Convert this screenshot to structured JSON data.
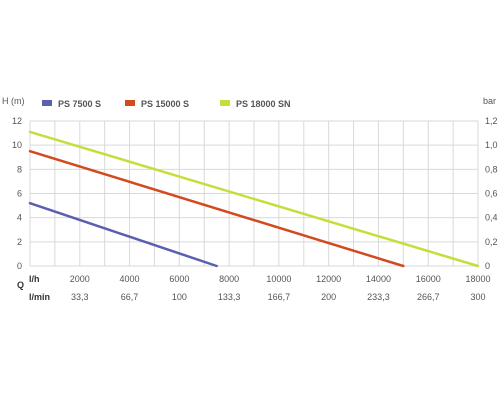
{
  "chart_data": {
    "type": "line",
    "left_axis_label": "H (m)",
    "right_axis_label": "bar",
    "q_label": "Q",
    "lh_label": "l/h",
    "lmin_label": "l/min",
    "y_left_ticks": [
      "0",
      "2",
      "4",
      "6",
      "8",
      "10",
      "12"
    ],
    "y_right_ticks": [
      "0",
      "0,2",
      "0,4",
      "0,6",
      "0,8",
      "1,0",
      "1,2"
    ],
    "x_lh_ticks": [
      "2000",
      "4000",
      "6000",
      "8000",
      "10000",
      "12000",
      "14000",
      "16000",
      "18000"
    ],
    "x_lmin_ticks": [
      "33,3",
      "66,7",
      "100",
      "133,3",
      "166,7",
      "200",
      "233,3",
      "266,7",
      "300"
    ],
    "xlim": [
      0,
      18000
    ],
    "ylim": [
      0,
      12
    ],
    "grid": true,
    "legend_position": "top",
    "series": [
      {
        "name": "PS 7500 S",
        "color": "#5a5fb0",
        "points": [
          [
            0,
            5.2
          ],
          [
            7500,
            0
          ]
        ]
      },
      {
        "name": "PS 15000 S",
        "color": "#d24a1e",
        "points": [
          [
            0,
            9.5
          ],
          [
            15000,
            0
          ]
        ]
      },
      {
        "name": "PS 18000 SN",
        "color": "#c8dc3c",
        "points": [
          [
            0,
            11.1
          ],
          [
            18000,
            0
          ]
        ]
      }
    ]
  }
}
